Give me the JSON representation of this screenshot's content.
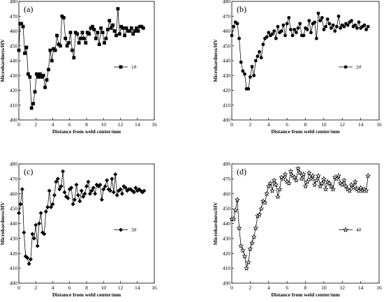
{
  "chart_data": [
    {
      "type": "line",
      "panel_label": "(a)",
      "xlabel": "Distance from weld center/mm",
      "ylabel": "Microhardness/HV",
      "xlim": [
        0,
        16
      ],
      "ylim": [
        400,
        480
      ],
      "xticks": [
        0,
        2,
        4,
        6,
        8,
        10,
        12,
        14,
        16
      ],
      "yticks": [
        400,
        410,
        420,
        430,
        440,
        450,
        460,
        470,
        480
      ],
      "legend_position": "right-middle",
      "series": [
        {
          "name": "1#",
          "marker": "square",
          "x": [
            0.0,
            0.15,
            0.3,
            0.5,
            0.7,
            0.9,
            1.1,
            1.3,
            1.5,
            1.7,
            1.9,
            2.1,
            2.3,
            2.5,
            2.7,
            2.9,
            3.1,
            3.3,
            3.5,
            3.7,
            3.9,
            4.1,
            4.3,
            4.5,
            4.7,
            4.9,
            5.1,
            5.3,
            5.5,
            5.7,
            5.9,
            6.1,
            6.3,
            6.5,
            6.7,
            6.9,
            7.1,
            7.3,
            7.5,
            7.7,
            7.9,
            8.1,
            8.3,
            8.5,
            8.7,
            8.9,
            9.1,
            9.3,
            9.5,
            9.7,
            9.9,
            10.1,
            10.3,
            10.5,
            10.7,
            10.9,
            11.1,
            11.3,
            11.5,
            11.7,
            11.9,
            12.1,
            12.3,
            12.5,
            12.7,
            12.9,
            13.1,
            13.3,
            13.5,
            13.7,
            13.9,
            14.1,
            14.3,
            14.5,
            14.7
          ],
          "y": [
            447,
            465,
            465,
            463,
            445,
            449,
            431,
            429,
            408,
            411,
            419,
            431,
            429,
            431,
            429,
            430,
            422,
            427,
            434,
            447,
            440,
            448,
            447,
            457,
            451,
            450,
            470,
            469,
            455,
            450,
            452,
            459,
            447,
            442,
            459,
            458,
            452,
            455,
            459,
            455,
            452,
            459,
            458,
            462,
            463,
            461,
            455,
            459,
            451,
            462,
            459,
            452,
            455,
            461,
            467,
            462,
            464,
            460,
            457,
            475,
            458,
            463,
            462,
            457,
            462,
            460,
            460,
            462,
            458,
            460,
            462,
            460,
            463,
            463,
            462
          ]
        }
      ]
    },
    {
      "type": "line",
      "panel_label": "(b)",
      "xlabel": "Distance from weld center/mm",
      "ylabel": "Microhardness/HV",
      "xlim": [
        0,
        16
      ],
      "ylim": [
        400,
        480
      ],
      "xticks": [
        0,
        2,
        4,
        6,
        8,
        10,
        12,
        14,
        16
      ],
      "yticks": [
        400,
        410,
        420,
        430,
        440,
        450,
        460,
        470,
        480
      ],
      "legend_position": "right-middle",
      "series": [
        {
          "name": "2#",
          "marker": "circle",
          "x": [
            0.0,
            0.2,
            0.4,
            0.6,
            0.8,
            1.0,
            1.2,
            1.4,
            1.6,
            1.8,
            2.0,
            2.2,
            2.4,
            2.6,
            2.8,
            3.0,
            3.2,
            3.4,
            3.6,
            3.8,
            4.0,
            4.2,
            4.4,
            4.6,
            4.8,
            5.0,
            5.2,
            5.4,
            5.6,
            5.8,
            6.0,
            6.2,
            6.4,
            6.6,
            6.8,
            7.0,
            7.2,
            7.4,
            7.6,
            7.8,
            8.0,
            8.2,
            8.4,
            8.6,
            8.8,
            9.0,
            9.2,
            9.4,
            9.6,
            9.8,
            10.0,
            10.2,
            10.4,
            10.6,
            10.8,
            11.0,
            11.2,
            11.4,
            11.6,
            11.8,
            12.0,
            12.2,
            12.4,
            12.6,
            12.8,
            13.0,
            13.2,
            13.4,
            13.6,
            13.8,
            14.0,
            14.2,
            14.4,
            14.6,
            14.8
          ],
          "y": [
            457,
            463,
            466,
            465,
            455,
            439,
            433,
            431,
            421,
            421,
            429,
            436,
            430,
            440,
            443,
            446,
            442,
            451,
            455,
            456,
            459,
            457,
            458,
            460,
            455,
            463,
            459,
            460,
            464,
            457,
            465,
            469,
            461,
            457,
            461,
            459,
            462,
            465,
            457,
            457,
            462,
            461,
            467,
            459,
            465,
            466,
            455,
            472,
            467,
            469,
            461,
            463,
            468,
            465,
            462,
            464,
            460,
            463,
            470,
            462,
            464,
            463,
            465,
            464,
            466,
            467,
            463,
            464,
            462,
            466,
            462,
            463,
            464,
            461,
            463
          ]
        }
      ]
    },
    {
      "type": "line",
      "panel_label": "(c)",
      "xlabel": "Distance from weld center/mm",
      "ylabel": "Microhardness/HV",
      "xlim": [
        0,
        16
      ],
      "ylim": [
        400,
        480
      ],
      "xticks": [
        0,
        2,
        4,
        6,
        8,
        10,
        12,
        14,
        16
      ],
      "yticks": [
        400,
        410,
        420,
        430,
        440,
        450,
        460,
        470,
        480
      ],
      "legend_position": "right-middle",
      "series": [
        {
          "name": "3#",
          "marker": "diamond",
          "x": [
            0.0,
            0.2,
            0.4,
            0.6,
            0.8,
            1.0,
            1.2,
            1.4,
            1.6,
            1.8,
            2.0,
            2.2,
            2.4,
            2.6,
            2.8,
            3.0,
            3.2,
            3.4,
            3.6,
            3.8,
            4.0,
            4.2,
            4.4,
            4.6,
            4.8,
            5.0,
            5.2,
            5.4,
            5.6,
            5.8,
            6.0,
            6.2,
            6.4,
            6.6,
            6.8,
            7.0,
            7.2,
            7.4,
            7.6,
            7.8,
            8.0,
            8.2,
            8.4,
            8.6,
            8.8,
            9.0,
            9.2,
            9.4,
            9.6,
            9.8,
            10.0,
            10.2,
            10.4,
            10.6,
            10.8,
            11.0,
            11.2,
            11.4,
            11.6,
            11.8,
            12.0,
            12.2,
            12.4,
            12.6,
            12.8,
            13.0,
            13.2,
            13.4,
            13.6,
            13.8,
            14.0,
            14.2,
            14.4,
            14.6,
            14.8
          ],
          "y": [
            447,
            453,
            463,
            434,
            418,
            417,
            413,
            416,
            433,
            430,
            439,
            425,
            440,
            447,
            434,
            433,
            448,
            451,
            462,
            451,
            453,
            459,
            468,
            470,
            463,
            465,
            475,
            461,
            458,
            457,
            463,
            464,
            453,
            456,
            466,
            459,
            455,
            462,
            458,
            460,
            465,
            468,
            460,
            462,
            464,
            460,
            466,
            465,
            466,
            456,
            463,
            465,
            469,
            463,
            462,
            470,
            461,
            473,
            459,
            462,
            463,
            460,
            465,
            464,
            462,
            463,
            463,
            462,
            461,
            464,
            462,
            463,
            462,
            461,
            462
          ]
        }
      ]
    },
    {
      "type": "line",
      "panel_label": "(d)",
      "xlabel": "Distance from weld center/mm",
      "ylabel": "Microhardness/HV",
      "xlim": [
        0,
        16
      ],
      "ylim": [
        400,
        480
      ],
      "xticks": [
        0,
        2,
        4,
        6,
        8,
        10,
        12,
        14,
        16
      ],
      "yticks": [
        400,
        410,
        420,
        430,
        440,
        450,
        460,
        470,
        480
      ],
      "legend_position": "right-middle",
      "series": [
        {
          "name": "4#",
          "marker": "star",
          "x": [
            0.0,
            0.2,
            0.4,
            0.6,
            0.8,
            1.0,
            1.2,
            1.4,
            1.6,
            1.8,
            2.0,
            2.2,
            2.4,
            2.6,
            2.8,
            3.0,
            3.2,
            3.4,
            3.6,
            3.8,
            4.0,
            4.2,
            4.4,
            4.6,
            4.8,
            5.0,
            5.2,
            5.4,
            5.6,
            5.8,
            6.0,
            6.2,
            6.4,
            6.6,
            6.8,
            7.0,
            7.2,
            7.4,
            7.6,
            7.8,
            8.0,
            8.2,
            8.4,
            8.6,
            8.8,
            9.0,
            9.2,
            9.4,
            9.6,
            9.8,
            10.0,
            10.2,
            10.4,
            10.6,
            10.8,
            11.0,
            11.2,
            11.4,
            11.6,
            11.8,
            12.0,
            12.2,
            12.4,
            12.6,
            12.8,
            13.0,
            13.2,
            13.4,
            13.6,
            13.8,
            14.0,
            14.2,
            14.4,
            14.6,
            14.8
          ],
          "y": [
            443,
            443,
            449,
            456,
            437,
            425,
            422,
            418,
            410,
            414,
            423,
            427,
            431,
            437,
            445,
            446,
            450,
            455,
            454,
            460,
            465,
            467,
            462,
            469,
            466,
            458,
            463,
            471,
            470,
            473,
            468,
            467,
            475,
            472,
            471,
            469,
            477,
            474,
            470,
            473,
            465,
            468,
            474,
            470,
            472,
            466,
            469,
            472,
            465,
            467,
            470,
            463,
            468,
            467,
            465,
            463,
            471,
            470,
            472,
            467,
            466,
            469,
            465,
            463,
            462,
            466,
            464,
            468,
            463,
            462,
            464,
            462,
            463,
            462,
            472
          ]
        }
      ]
    }
  ]
}
